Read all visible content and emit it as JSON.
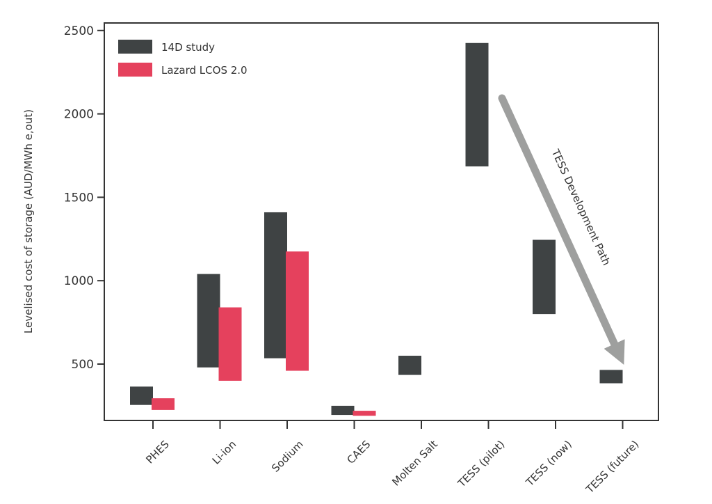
{
  "chart_data": {
    "type": "bar",
    "subtype": "floating-range",
    "categories": [
      "PHES",
      "Li-ion",
      "Sodium",
      "CAES",
      "Molten Salt",
      "TESS (pilot)",
      "TESS (now)",
      "TESS (future)"
    ],
    "series": [
      {
        "name": "14D study",
        "color": "#3f4344",
        "ranges": [
          [
            255,
            365
          ],
          [
            480,
            1040
          ],
          [
            535,
            1410
          ],
          [
            195,
            250
          ],
          [
            435,
            550
          ],
          [
            1685,
            2425
          ],
          [
            800,
            1245
          ],
          [
            385,
            465
          ]
        ]
      },
      {
        "name": "Lazard LCOS 2.0",
        "color": "#e5415d",
        "ranges": [
          [
            225,
            295
          ],
          [
            400,
            840
          ],
          [
            460,
            1175
          ],
          [
            190,
            220
          ],
          null,
          null,
          null,
          null
        ]
      }
    ],
    "ylabel": "Levelised cost of storage (AUD/MWh e,out)",
    "xlabel": "",
    "ylim": [
      170,
      2500
    ],
    "yticks": [
      500,
      1000,
      1500,
      2000,
      2500
    ],
    "legend_position": "top-left",
    "grid": false,
    "annotation": {
      "text": "TESS Development Path",
      "from_category": "TESS (pilot)",
      "to_category": "TESS (future)",
      "arrow_color": "#9e9f9e"
    }
  }
}
